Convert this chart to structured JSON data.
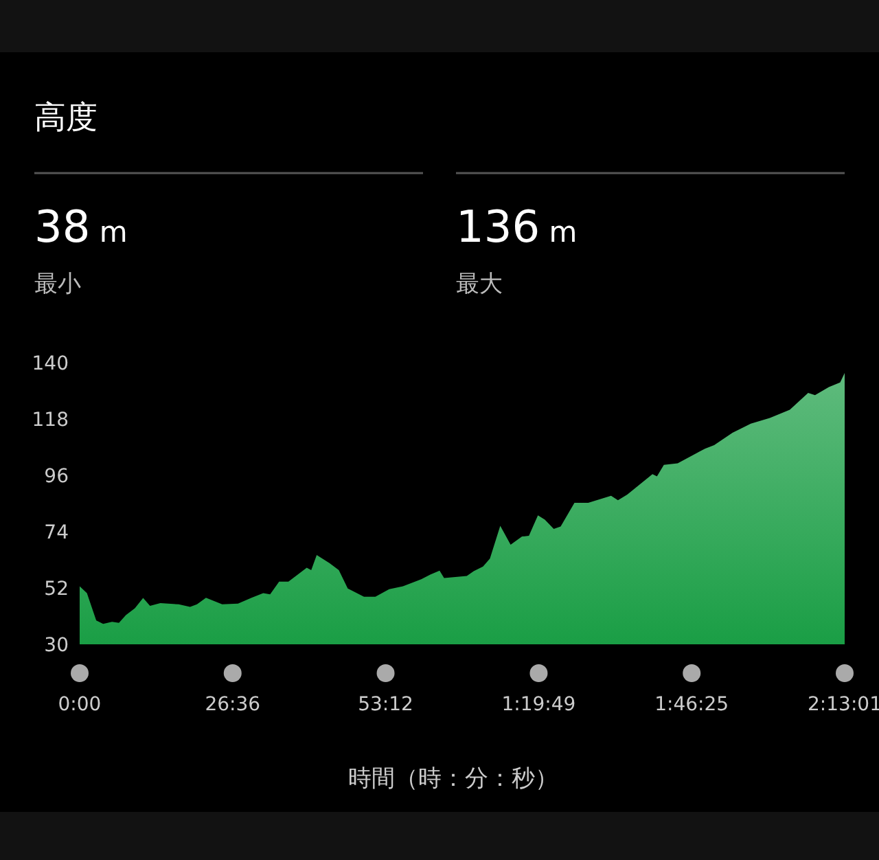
{
  "chart_data": {
    "type": "area",
    "title": "高度",
    "xlabel": "時間（時：分：秒）",
    "annotations": [
      "38 m",
      "最小",
      "136 m",
      "最大"
    ],
    "x": [
      0,
      76,
      173,
      245,
      338,
      410,
      482,
      576,
      662,
      734,
      842,
      1033,
      1152,
      1224,
      1318,
      1487,
      1652,
      1793,
      1915,
      1987,
      2081,
      2178,
      2275,
      2369,
      2416,
      2473,
      2606,
      2704,
      2797,
      2966,
      3085,
      3229,
      3373,
      3564,
      3658,
      3755,
      3802,
      4039,
      4111,
      4208,
      4280,
      4388,
      4496,
      4615,
      4687,
      4781,
      4853,
      4946,
      5018,
      5162,
      5306,
      5544,
      5616,
      5713,
      5976,
      6023,
      6095,
      6239,
      6523,
      6620,
      6811,
      6905,
      7002,
      7200,
      7409,
      7600,
      7672,
      7816,
      7934,
      7981
    ],
    "series": [
      {
        "color": "#1a9e45",
        "values": [
          52.7,
          50,
          39.3,
          38,
          38.8,
          38.4,
          41.4,
          44.1,
          48.1,
          45,
          46.1,
          45.6,
          44.6,
          45.6,
          48.2,
          45.6,
          45.9,
          48.2,
          50,
          49.5,
          54.5,
          54.5,
          57.2,
          59.9,
          59,
          64.9,
          61.7,
          59,
          51.8,
          48.6,
          48.6,
          51.5,
          52.7,
          55.4,
          57.2,
          58.8,
          55.9,
          56.7,
          58.6,
          60.4,
          63.5,
          76.3,
          68.9,
          72.1,
          72.4,
          80.4,
          78.7,
          75.1,
          76,
          85.3,
          85.3,
          88,
          86.3,
          88.5,
          96.5,
          95.6,
          100.1,
          100.7,
          106.4,
          107.8,
          112.6,
          114.4,
          116.2,
          118.4,
          121.6,
          128.2,
          127.3,
          130.5,
          132.3,
          136
        ]
      }
    ],
    "xlim": [
      0,
      7981
    ],
    "xticks": [
      {
        "value": 0,
        "label": "0:00"
      },
      {
        "value": 1596,
        "label": "26:36"
      },
      {
        "value": 3192,
        "label": "53:12"
      },
      {
        "value": 4789,
        "label": "1:19:49"
      },
      {
        "value": 6385,
        "label": "1:46:25"
      },
      {
        "value": 7981,
        "label": "2:13:01"
      }
    ],
    "ylim": [
      30,
      140
    ],
    "yticks": [
      30,
      52,
      74,
      96,
      118,
      140
    ],
    "grid": false
  }
}
